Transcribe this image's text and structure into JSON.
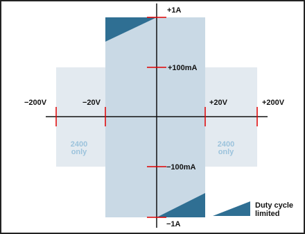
{
  "colors": {
    "outer_region": "#e3eaf0",
    "inner_region": "#c9d9e5",
    "duty_cycle": "#2f6f93",
    "axis": "#111111",
    "tick": "#e00000",
    "only_text": "#9cc3dc"
  },
  "voltage_labels": {
    "neg_200v": "−200V",
    "neg_20v": "−20V",
    "pos_20v": "+20V",
    "pos_200v": "+200V"
  },
  "current_labels": {
    "pos_1a": "+1A",
    "pos_100ma": "+100mA",
    "neg_100ma": "−100mA",
    "neg_1a": "−1A"
  },
  "region_notes": {
    "left_line1": "2400",
    "left_line2": "only",
    "right_line1": "2400",
    "right_line2": "only"
  },
  "legend": {
    "line1": "Duty cycle",
    "line2": "limited"
  }
}
